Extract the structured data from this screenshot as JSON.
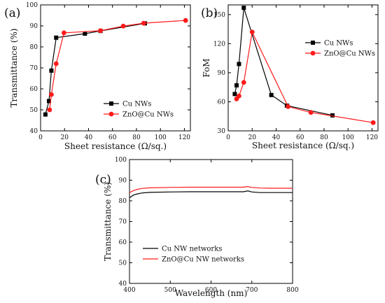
{
  "chart_data": [
    {
      "panel": "(a)",
      "type": "line",
      "xlabel": "Sheet resistance (Ω/sq.)",
      "ylabel": "Transmittance (%)",
      "xlim": [
        0,
        125
      ],
      "ylim": [
        40,
        100
      ],
      "xticks": [
        "0",
        "20",
        "40",
        "60",
        "80",
        "100",
        "120"
      ],
      "yticks": [
        "40",
        "50",
        "60",
        "70",
        "80",
        "90",
        "100"
      ],
      "legend_position": "lower-right",
      "series": [
        {
          "name": "Cu NWs",
          "marker": "square",
          "color": "#000000",
          "points": [
            [
              4,
              47.8
            ],
            [
              7,
              54.2
            ],
            [
              9,
              68.7
            ],
            [
              13,
              84.4
            ],
            [
              37,
              86.3
            ],
            [
              50,
              87.6
            ],
            [
              87,
              91.2
            ]
          ]
        },
        {
          "name": "ZnO@Cu NWs",
          "marker": "circle",
          "color": "#ff1a1a",
          "points": [
            [
              7.5,
              50
            ],
            [
              9,
              57.3
            ],
            [
              13,
              72
            ],
            [
              19.5,
              86.7
            ],
            [
              50,
              87.7
            ],
            [
              69,
              89.9
            ],
            [
              86,
              91.3
            ],
            [
              121,
              92.6
            ]
          ]
        }
      ]
    },
    {
      "panel": "(b)",
      "type": "line",
      "xlabel": "Sheet resistance (Ω/sq.)",
      "ylabel": "FoM",
      "xlim": [
        0,
        125
      ],
      "ylim": [
        30,
        160
      ],
      "xticks": [
        "0",
        "20",
        "40",
        "60",
        "80",
        "100",
        "120"
      ],
      "yticks": [
        "30",
        "60",
        "90",
        "120",
        "150"
      ],
      "legend_position": "top-right",
      "series": [
        {
          "name": "Cu NWs",
          "marker": "square",
          "color": "#000000",
          "points": [
            [
              5.5,
              68
            ],
            [
              7,
              77
            ],
            [
              9,
              99
            ],
            [
              13,
              157
            ],
            [
              36,
              67
            ],
            [
              49,
              56
            ],
            [
              87,
              46
            ]
          ]
        },
        {
          "name": "ZnO@Cu NWs",
          "marker": "circle",
          "color": "#ff1a1a",
          "points": [
            [
              7,
              63
            ],
            [
              9,
              66
            ],
            [
              13,
              80
            ],
            [
              20,
              132
            ],
            [
              50,
              55
            ],
            [
              69,
              49
            ],
            [
              121,
              38.5
            ]
          ]
        }
      ]
    },
    {
      "panel": "(c)",
      "type": "line",
      "xlabel": "Wavelength (nm)",
      "ylabel": "Transmittance (%)",
      "xlim": [
        400,
        800
      ],
      "ylim": [
        40,
        100
      ],
      "xticks": [
        "400",
        "500",
        "600",
        "700",
        "800"
      ],
      "yticks": [
        "40",
        "50",
        "60",
        "70",
        "80",
        "90",
        "100"
      ],
      "legend_position": "bottom-left",
      "series": [
        {
          "name": "Cu NW networks",
          "color": "#000000",
          "points": [
            [
              400,
              81.5
            ],
            [
              410,
              82.8
            ],
            [
              420,
              83.4
            ],
            [
              430,
              83.8
            ],
            [
              450,
              84.1
            ],
            [
              500,
              84.3
            ],
            [
              550,
              84.4
            ],
            [
              600,
              84.4
            ],
            [
              650,
              84.4
            ],
            [
              680,
              84.4
            ],
            [
              690,
              84.8
            ],
            [
              700,
              84.3
            ],
            [
              720,
              84.0
            ],
            [
              750,
              84.0
            ],
            [
              800,
              84.0
            ]
          ]
        },
        {
          "name": "ZnO@Cu NW networks",
          "color": "#ff1a1a",
          "points": [
            [
              400,
              84.0
            ],
            [
              410,
              85.0
            ],
            [
              420,
              85.6
            ],
            [
              430,
              86.0
            ],
            [
              450,
              86.3
            ],
            [
              500,
              86.5
            ],
            [
              550,
              86.6
            ],
            [
              600,
              86.6
            ],
            [
              650,
              86.6
            ],
            [
              680,
              86.6
            ],
            [
              690,
              86.9
            ],
            [
              700,
              86.5
            ],
            [
              720,
              86.2
            ],
            [
              750,
              86.1
            ],
            [
              800,
              86.1
            ]
          ]
        }
      ]
    }
  ]
}
